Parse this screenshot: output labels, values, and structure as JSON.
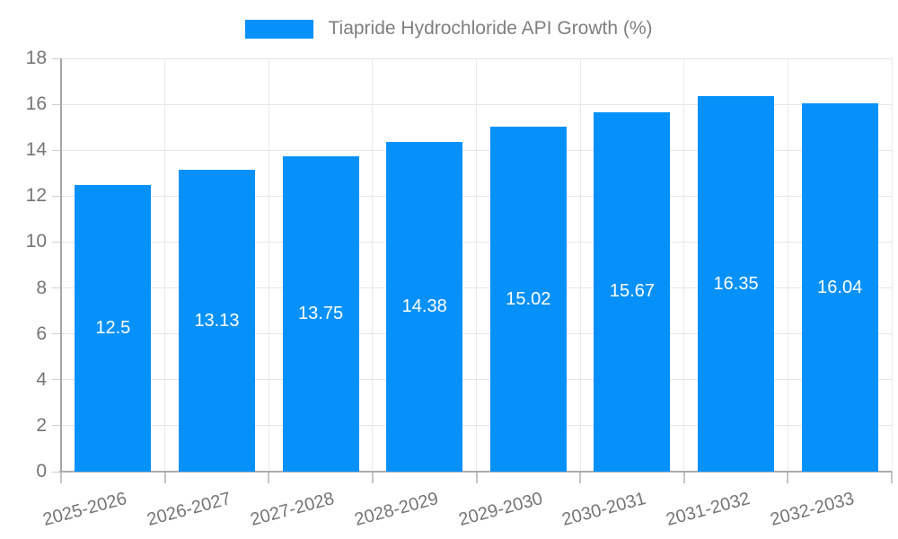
{
  "chart_data": {
    "type": "bar",
    "title": "Tiapride Hydrochloride API Growth (%)",
    "legend_position": "top-center",
    "categories": [
      "2025-2026",
      "2026-2027",
      "2027-2028",
      "2028-2029",
      "2029-2030",
      "2030-2031",
      "2031-2032",
      "2032-2033"
    ],
    "values": [
      12.5,
      13.13,
      13.75,
      14.38,
      15.02,
      15.67,
      16.35,
      16.04
    ],
    "value_labels": [
      "12.5",
      "13.13",
      "13.75",
      "14.38",
      "15.02",
      "15.67",
      "16.35",
      "16.04"
    ],
    "xlabel": "",
    "ylabel": "",
    "ylim": [
      0,
      18
    ],
    "ytick_interval": 2,
    "ytick_labels": [
      "0",
      "2",
      "4",
      "6",
      "8",
      "10",
      "12",
      "14",
      "16",
      "18"
    ],
    "grid": true,
    "bar_color": "#0691fa",
    "value_label_color": "#ffffff"
  }
}
